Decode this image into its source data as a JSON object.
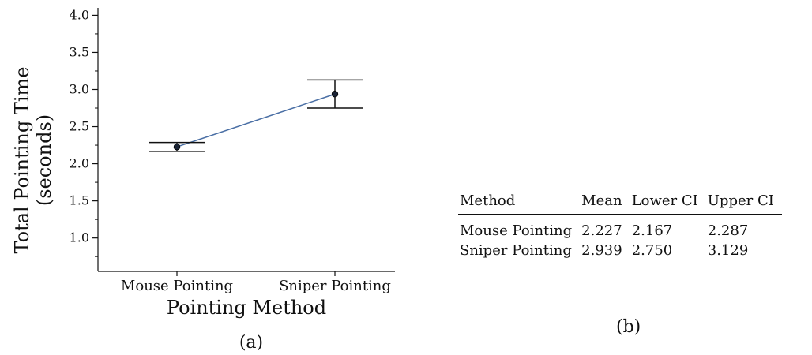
{
  "chart_data": [
    {
      "type": "line",
      "panel_label": "(a)",
      "xlabel": "Pointing Method",
      "ylabel": [
        "Total Pointing Time",
        "(seconds)"
      ],
      "categories": [
        "Mouse Pointing",
        "Sniper Pointing"
      ],
      "series": [
        {
          "values": [
            2.227,
            2.939
          ],
          "lower_ci": [
            2.167,
            2.75
          ],
          "upper_ci": [
            2.287,
            3.129
          ],
          "color": "#4a6fa5"
        }
      ],
      "yticks": [
        "1.0",
        "1.5",
        "2.0",
        "2.5",
        "3.0",
        "3.5",
        "4.0"
      ],
      "ylim": [
        0.55,
        4.1
      ],
      "grid": false
    },
    {
      "type": "table",
      "panel_label": "(b)",
      "columns": [
        "Method",
        "Mean",
        "Lower CI",
        "Upper CI"
      ],
      "rows": [
        [
          "Mouse Pointing",
          "2.227",
          "2.167",
          "2.287"
        ],
        [
          "Sniper Pointing",
          "2.939",
          "2.750",
          "3.129"
        ]
      ]
    }
  ]
}
